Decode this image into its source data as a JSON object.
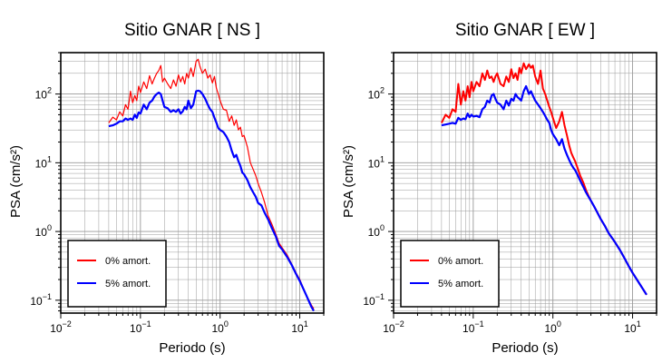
{
  "colors": {
    "undamped": "#ff0000",
    "damped": "#0000ff",
    "grid": "#9a9a9a",
    "frame": "#000000",
    "background": "#ffffff"
  },
  "chart_data": [
    {
      "type": "line",
      "title": "Sitio GNAR [ NS ]",
      "xlabel": "Periodo (s)",
      "ylabel": "PSA (cm/s²)",
      "xscale": "log",
      "yscale": "log",
      "xlim": [
        0.01,
        20
      ],
      "ylim": [
        0.065,
        400
      ],
      "grid": true,
      "x_ticks": [
        {
          "value": 0.01,
          "mantissa": "10",
          "exp": "−2"
        },
        {
          "value": 0.1,
          "mantissa": "10",
          "exp": "−1"
        },
        {
          "value": 1,
          "mantissa": "10",
          "exp": "0"
        },
        {
          "value": 10,
          "mantissa": "10",
          "exp": "1"
        }
      ],
      "y_ticks": [
        {
          "value": 0.1,
          "mantissa": "10",
          "exp": "−1"
        },
        {
          "value": 1,
          "mantissa": "10",
          "exp": "0"
        },
        {
          "value": 10,
          "mantissa": "10",
          "exp": "1"
        },
        {
          "value": 100,
          "mantissa": "10",
          "exp": "2"
        }
      ],
      "legend": {
        "position": "bottom-left",
        "entries": [
          "0% amort.",
          "5% amort."
        ]
      },
      "series": [
        {
          "name": "0% amort.",
          "color": "#ff0000",
          "width": 1.2,
          "x": [
            0.04,
            0.045,
            0.05,
            0.055,
            0.06,
            0.065,
            0.07,
            0.075,
            0.08,
            0.085,
            0.09,
            0.095,
            0.1,
            0.11,
            0.12,
            0.13,
            0.14,
            0.15,
            0.16,
            0.17,
            0.18,
            0.19,
            0.2,
            0.22,
            0.24,
            0.26,
            0.28,
            0.3,
            0.32,
            0.34,
            0.36,
            0.38,
            0.4,
            0.43,
            0.46,
            0.5,
            0.53,
            0.56,
            0.6,
            0.65,
            0.7,
            0.75,
            0.8,
            0.85,
            0.9,
            0.95,
            1.0,
            1.1,
            1.2,
            1.3,
            1.4,
            1.5,
            1.6,
            1.7,
            1.8,
            1.9,
            2.0,
            2.2,
            2.4,
            2.6,
            2.8,
            3.0,
            3.3,
            3.6,
            4.0,
            4.5,
            5.0,
            5.5,
            6.0,
            7.0,
            8.0,
            9.0,
            10.0,
            12.0,
            14.0,
            15.0
          ],
          "y": [
            38,
            46,
            42,
            55,
            48,
            70,
            60,
            110,
            75,
            95,
            80,
            130,
            105,
            150,
            120,
            185,
            140,
            170,
            200,
            220,
            260,
            150,
            170,
            140,
            120,
            160,
            130,
            190,
            150,
            180,
            140,
            200,
            170,
            240,
            180,
            300,
            320,
            250,
            200,
            230,
            170,
            190,
            145,
            180,
            120,
            100,
            80,
            60,
            58,
            40,
            48,
            35,
            42,
            30,
            33,
            24,
            25,
            17,
            10,
            8.0,
            6.5,
            5.0,
            3.7,
            2.7,
            1.7,
            1.25,
            0.92,
            0.68,
            0.58,
            0.45,
            0.33,
            0.25,
            0.2,
            0.12,
            0.085,
            0.075
          ]
        },
        {
          "name": "5% amort.",
          "color": "#0000ff",
          "width": 2.2,
          "x": [
            0.04,
            0.045,
            0.05,
            0.055,
            0.06,
            0.065,
            0.07,
            0.075,
            0.08,
            0.085,
            0.09,
            0.095,
            0.1,
            0.11,
            0.12,
            0.13,
            0.14,
            0.15,
            0.16,
            0.17,
            0.18,
            0.19,
            0.2,
            0.22,
            0.24,
            0.26,
            0.28,
            0.3,
            0.32,
            0.34,
            0.36,
            0.38,
            0.4,
            0.43,
            0.46,
            0.5,
            0.53,
            0.56,
            0.6,
            0.65,
            0.7,
            0.75,
            0.8,
            0.85,
            0.9,
            0.95,
            1.0,
            1.1,
            1.2,
            1.3,
            1.4,
            1.5,
            1.6,
            1.7,
            1.8,
            1.9,
            2.0,
            2.2,
            2.4,
            2.6,
            2.8,
            3.0,
            3.3,
            3.6,
            4.0,
            4.5,
            5.0,
            5.5,
            6.0,
            7.0,
            8.0,
            9.0,
            10.0,
            12.0,
            14.0,
            15.0
          ],
          "y": [
            34,
            35,
            37,
            40,
            40,
            44,
            42,
            44,
            42,
            50,
            45,
            54,
            52,
            70,
            60,
            75,
            80,
            92,
            100,
            105,
            100,
            80,
            65,
            62,
            55,
            58,
            55,
            60,
            52,
            56,
            65,
            60,
            80,
            62,
            70,
            110,
            112,
            110,
            100,
            85,
            70,
            60,
            55,
            45,
            38,
            32,
            30,
            28,
            24,
            20,
            15,
            12,
            13,
            10.5,
            9,
            7.2,
            6.8,
            5.6,
            4.4,
            3.7,
            3.2,
            2.6,
            2.4,
            1.9,
            1.5,
            1.1,
            0.85,
            0.62,
            0.55,
            0.42,
            0.32,
            0.24,
            0.19,
            0.12,
            0.08,
            0.07
          ]
        }
      ]
    },
    {
      "type": "line",
      "title": "Sitio GNAR [ EW ]",
      "xlabel": "Periodo (s)",
      "ylabel": "PSA (cm/s²)",
      "xscale": "log",
      "yscale": "log",
      "xlim": [
        0.01,
        20
      ],
      "ylim": [
        0.065,
        400
      ],
      "grid": true,
      "x_ticks": [
        {
          "value": 0.01,
          "mantissa": "10",
          "exp": "−2"
        },
        {
          "value": 0.1,
          "mantissa": "10",
          "exp": "−1"
        },
        {
          "value": 1,
          "mantissa": "10",
          "exp": "0"
        },
        {
          "value": 10,
          "mantissa": "10",
          "exp": "1"
        }
      ],
      "y_ticks": [
        {
          "value": 0.1,
          "mantissa": "10",
          "exp": "−1"
        },
        {
          "value": 1,
          "mantissa": "10",
          "exp": "0"
        },
        {
          "value": 10,
          "mantissa": "10",
          "exp": "1"
        },
        {
          "value": 100,
          "mantissa": "10",
          "exp": "2"
        }
      ],
      "legend": {
        "position": "bottom-left",
        "entries": [
          "0% amort.",
          "5% amort."
        ]
      },
      "series": [
        {
          "name": "0% amort.",
          "color": "#ff0000",
          "width": 2.0,
          "x": [
            0.04,
            0.045,
            0.05,
            0.055,
            0.06,
            0.065,
            0.07,
            0.075,
            0.08,
            0.085,
            0.09,
            0.095,
            0.1,
            0.11,
            0.12,
            0.13,
            0.14,
            0.15,
            0.16,
            0.17,
            0.18,
            0.19,
            0.2,
            0.22,
            0.24,
            0.26,
            0.28,
            0.3,
            0.32,
            0.34,
            0.36,
            0.38,
            0.4,
            0.43,
            0.46,
            0.5,
            0.53,
            0.56,
            0.6,
            0.65,
            0.7,
            0.75,
            0.8,
            0.85,
            0.9,
            0.95,
            1.0,
            1.1,
            1.2,
            1.3,
            1.4,
            1.5,
            1.6,
            1.7,
            1.8,
            1.9,
            2.0,
            2.2,
            2.4,
            2.6,
            2.8,
            3.0,
            3.3,
            3.6,
            4.0,
            4.5,
            5.0,
            6.0,
            7.0,
            8.0,
            9.0,
            10.0,
            12.0,
            15.0
          ],
          "y": [
            38,
            50,
            45,
            60,
            55,
            140,
            70,
            110,
            80,
            130,
            90,
            150,
            110,
            150,
            130,
            200,
            160,
            220,
            170,
            180,
            150,
            180,
            200,
            140,
            130,
            180,
            150,
            230,
            170,
            200,
            160,
            240,
            200,
            280,
            230,
            270,
            240,
            260,
            180,
            140,
            220,
            120,
            100,
            80,
            65,
            55,
            45,
            32,
            40,
            55,
            35,
            25,
            18,
            14,
            12,
            10.5,
            9,
            6.5,
            5.2,
            4.0,
            3.3,
            2.8,
            2.3,
            1.9,
            1.5,
            1.2,
            0.95,
            0.7,
            0.53,
            0.4,
            0.31,
            0.25,
            0.18,
            0.12
          ]
        },
        {
          "name": "5% amort.",
          "color": "#0000ff",
          "width": 2.2,
          "x": [
            0.04,
            0.045,
            0.05,
            0.055,
            0.06,
            0.065,
            0.07,
            0.075,
            0.08,
            0.085,
            0.09,
            0.095,
            0.1,
            0.11,
            0.12,
            0.13,
            0.14,
            0.15,
            0.16,
            0.17,
            0.18,
            0.19,
            0.2,
            0.22,
            0.24,
            0.26,
            0.28,
            0.3,
            0.32,
            0.34,
            0.36,
            0.38,
            0.4,
            0.43,
            0.46,
            0.5,
            0.53,
            0.56,
            0.6,
            0.65,
            0.7,
            0.75,
            0.8,
            0.85,
            0.9,
            0.95,
            1.0,
            1.1,
            1.2,
            1.3,
            1.4,
            1.5,
            1.6,
            1.7,
            1.8,
            1.9,
            2.0,
            2.2,
            2.4,
            2.6,
            2.8,
            3.0,
            3.3,
            3.6,
            4.0,
            4.5,
            5.0,
            6.0,
            7.0,
            8.0,
            9.0,
            10.0,
            12.0,
            15.0
          ],
          "y": [
            35,
            36,
            37,
            38,
            37,
            45,
            42,
            44,
            43,
            52,
            46,
            50,
            47,
            48,
            46,
            60,
            65,
            80,
            75,
            95,
            100,
            85,
            75,
            70,
            60,
            80,
            68,
            85,
            80,
            100,
            90,
            85,
            80,
            110,
            130,
            100,
            110,
            95,
            80,
            70,
            62,
            55,
            48,
            42,
            38,
            30,
            26,
            22,
            18,
            22,
            16,
            13,
            11,
            9.5,
            8.5,
            7.8,
            7.0,
            5.5,
            4.5,
            3.7,
            3.2,
            2.8,
            2.3,
            1.9,
            1.5,
            1.2,
            0.95,
            0.7,
            0.53,
            0.4,
            0.31,
            0.25,
            0.18,
            0.12
          ]
        }
      ]
    }
  ]
}
